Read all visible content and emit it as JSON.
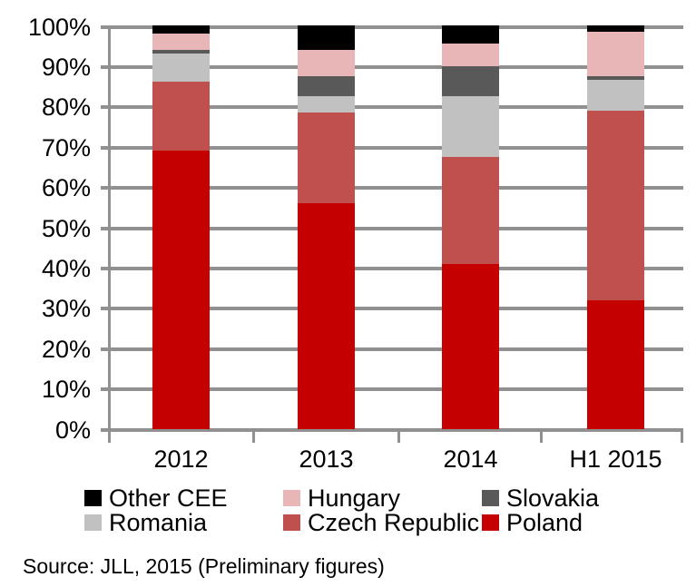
{
  "chart_data": {
    "type": "bar",
    "stacked": true,
    "unit": "%",
    "categories": [
      "2012",
      "2013",
      "2014",
      "H1 2015"
    ],
    "series": [
      {
        "name": "Poland",
        "color": "#C40000",
        "values": [
          69,
          56,
          41,
          32
        ]
      },
      {
        "name": "Czech Republic",
        "color": "#C0504D",
        "values": [
          17,
          22.5,
          26.5,
          47
        ]
      },
      {
        "name": "Romania",
        "color": "#C1C1C1",
        "values": [
          7,
          4,
          15,
          7.5
        ]
      },
      {
        "name": "Slovakia",
        "color": "#595959",
        "values": [
          1,
          5,
          7.5,
          1
        ]
      },
      {
        "name": "Hungary",
        "color": "#E8B6B7",
        "values": [
          4,
          6.5,
          5.5,
          11
        ]
      },
      {
        "name": "Other CEE",
        "color": "#000000",
        "values": [
          2,
          6,
          4.5,
          1.5
        ]
      }
    ],
    "title": "",
    "xlabel": "",
    "ylabel": "",
    "ylim": [
      0,
      100
    ],
    "y_tick_step": 10,
    "y_tick_labels": [
      "0%",
      "10%",
      "20%",
      "30%",
      "40%",
      "50%",
      "60%",
      "70%",
      "80%",
      "90%",
      "100%"
    ],
    "grid": true,
    "legend_position": "bottom",
    "legend_order": [
      "Other CEE",
      "Hungary",
      "Slovakia",
      "Romania",
      "Czech Republic",
      "Poland"
    ]
  },
  "source_note": "Source: JLL, 2015 (Preliminary figures)",
  "colors": {
    "gridline": "#909090",
    "axis": "#909090",
    "text": "#000000",
    "background": "#FFFFFF"
  }
}
